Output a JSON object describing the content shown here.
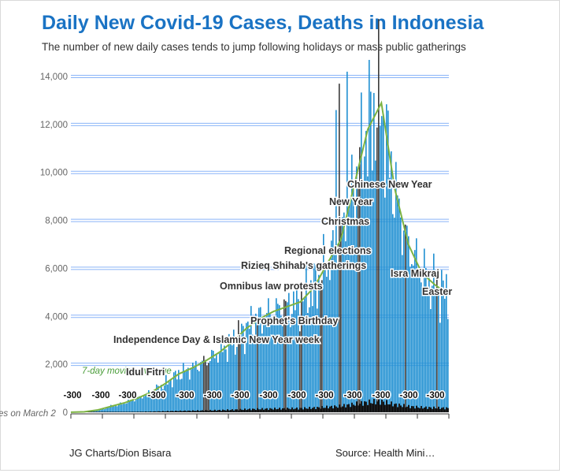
{
  "header": {
    "title": "Daily New Covid-19 Cases, Deaths in Indonesia",
    "subtitle": "The number of new daily cases tends to jump following holidays or mass public gatherings"
  },
  "footer": {
    "credit": "JG Charts/Dion Bisara",
    "source": "Source: Health Mini…"
  },
  "colors": {
    "title": "#1a73c4",
    "cases_bar": "#1f8fd1",
    "highlight_bar": "#3b3b3b",
    "moving_avg": "#7cb342",
    "deaths": "#000000",
    "gridline": "#8ab4f8"
  },
  "chart_data": {
    "type": "bar",
    "title": "Daily New Covid-19 Cases, Deaths in Indonesia",
    "ylim": [
      0,
      14500
    ],
    "y_ticks": [
      "0",
      "2,000",
      "4,000",
      "6,000",
      "8,000",
      "10,000",
      "12,000",
      "14,000"
    ],
    "grid": true,
    "x_start_label": "es on March 2",
    "series": [
      {
        "name": "7-day moving average",
        "values": [
          2,
          20,
          100,
          250,
          400,
          600,
          850,
          1200,
          1600,
          1850,
          2150,
          2500,
          2950,
          3500,
          3900,
          4200,
          4400,
          4600,
          5200,
          6200,
          7200,
          9500,
          11800,
          12900,
          9300,
          7000,
          5800,
          5300,
          4900
        ]
      }
    ],
    "deaths_negative_label": "-300",
    "annotations": [
      "Idul Fitri",
      "Independence Day & Islamic New Year week",
      "Prophet's Birthday",
      "Omnibus law protests",
      "Rizieq Shihab's gatherings",
      "Regional elections",
      "Christmas",
      "New Year",
      "Chinese New Year",
      "Isra Mikraj",
      "Easter"
    ]
  }
}
